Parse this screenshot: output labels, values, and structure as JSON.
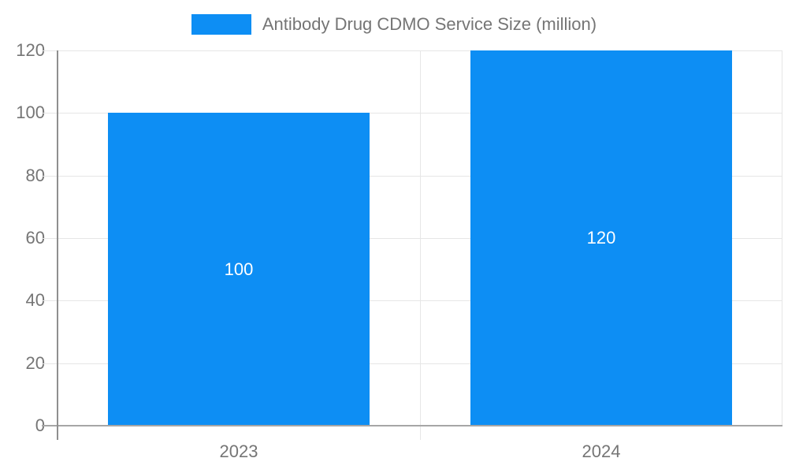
{
  "chart_data": {
    "type": "bar",
    "categories": [
      "2023",
      "2024"
    ],
    "values": [
      100,
      120
    ],
    "data_labels": [
      "100",
      "120"
    ],
    "series_name": "Antibody Drug CDMO Service Size (million)",
    "title": "",
    "xlabel": "",
    "ylabel": "",
    "ylim": [
      0,
      120
    ],
    "yticks": [
      0,
      20,
      40,
      60,
      80,
      100,
      120
    ],
    "grid": true,
    "legend_position": "top",
    "colors": {
      "bar": "#0d8ef4",
      "value_label": "#ffffff",
      "tick_text": "#757575",
      "gridline": "#e6e6e6",
      "axis_line": "#8f8f8f",
      "baseline": "#a6a6a6"
    },
    "layout": {
      "bar_band_fraction": 0.72
    }
  },
  "legend": {
    "label": "Antibody Drug CDMO Service Size (million)"
  }
}
